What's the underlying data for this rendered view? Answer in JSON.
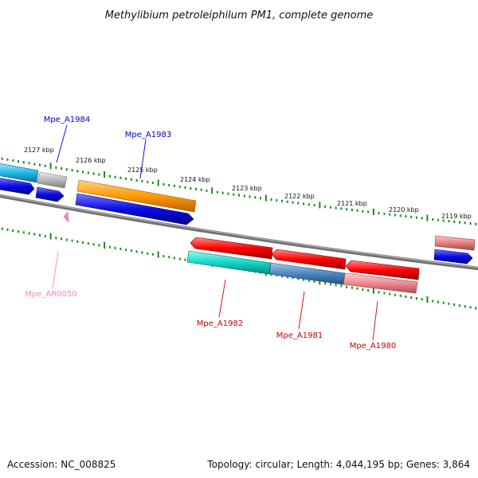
{
  "title": "Methylibium petroleiphilum PM1, complete genome",
  "footer": {
    "accession": "Accession: NC_008825",
    "summary": "Topology: circular; Length: 4,044,195 bp; Genes: 3,864"
  },
  "colors": {
    "tick": "#1a8a1a",
    "backbone": "#808080",
    "forward_label": "#0000cc",
    "reverse_label": "#cc0000",
    "rna_label": "#ee88bb"
  },
  "ruler": {
    "unit": "kbp",
    "outer_labels": [
      {
        "kbp": 2127,
        "text": "2127 kbp"
      },
      {
        "kbp": 2126,
        "text": "2126 kbp"
      },
      {
        "kbp": 2125,
        "text": "2125 kbp"
      },
      {
        "kbp": 2124,
        "text": "2124 kbp"
      },
      {
        "kbp": 2123,
        "text": "2123 kbp"
      },
      {
        "kbp": 2122,
        "text": "2122 kbp"
      },
      {
        "kbp": 2121,
        "text": "2121 kbp"
      },
      {
        "kbp": 2120,
        "text": "2120 kbp"
      },
      {
        "kbp": 2119,
        "text": "2119 kbp"
      }
    ]
  },
  "genes": [
    {
      "id": "outer-cyan",
      "label": "",
      "strand": "+",
      "track": "outer",
      "color": "#22b8e8"
    },
    {
      "id": "outer-gray",
      "label": "",
      "strand": "+",
      "track": "outer",
      "color": "#b8b8b8"
    },
    {
      "id": "outer-orange",
      "label": "",
      "strand": "+",
      "track": "outer",
      "color": "#ff9900"
    },
    {
      "id": "outer-salmon",
      "label": "",
      "strand": "+",
      "track": "outer",
      "color": "#e88080"
    },
    {
      "id": "blue-1",
      "label": "",
      "strand": "+",
      "track": "inner",
      "color": "#0a0ae6"
    },
    {
      "id": "Mpe_A1984",
      "label": "Mpe_A1984",
      "strand": "+",
      "track": "inner",
      "color": "#0a0ae6"
    },
    {
      "id": "Mpe_A1983",
      "label": "Mpe_A1983",
      "strand": "+",
      "track": "inner",
      "color": "#0a0ae6"
    },
    {
      "id": "blue-4",
      "label": "",
      "strand": "+",
      "track": "inner",
      "color": "#0a0ae6"
    },
    {
      "id": "Mpe_AR0050",
      "label": "Mpe_AR0050",
      "strand": "+",
      "track": "rna",
      "color": "#ee88bb"
    },
    {
      "id": "red-1",
      "label": "",
      "strand": "-",
      "track": "reverse",
      "color": "#ff0000"
    },
    {
      "id": "red-2",
      "label": "",
      "strand": "-",
      "track": "reverse",
      "color": "#ff0000"
    },
    {
      "id": "red-3",
      "label": "",
      "strand": "-",
      "track": "reverse",
      "color": "#ff0000"
    },
    {
      "id": "Mpe_A1982",
      "label": "Mpe_A1982",
      "strand": "-",
      "track": "reverse-inner",
      "color": "#11d8c8"
    },
    {
      "id": "Mpe_A1981",
      "label": "Mpe_A1981",
      "strand": "-",
      "track": "reverse-inner",
      "color": "#4a88c0"
    },
    {
      "id": "Mpe_A1980",
      "label": "Mpe_A1980",
      "strand": "-",
      "track": "reverse-inner",
      "color": "#f08a90"
    }
  ]
}
